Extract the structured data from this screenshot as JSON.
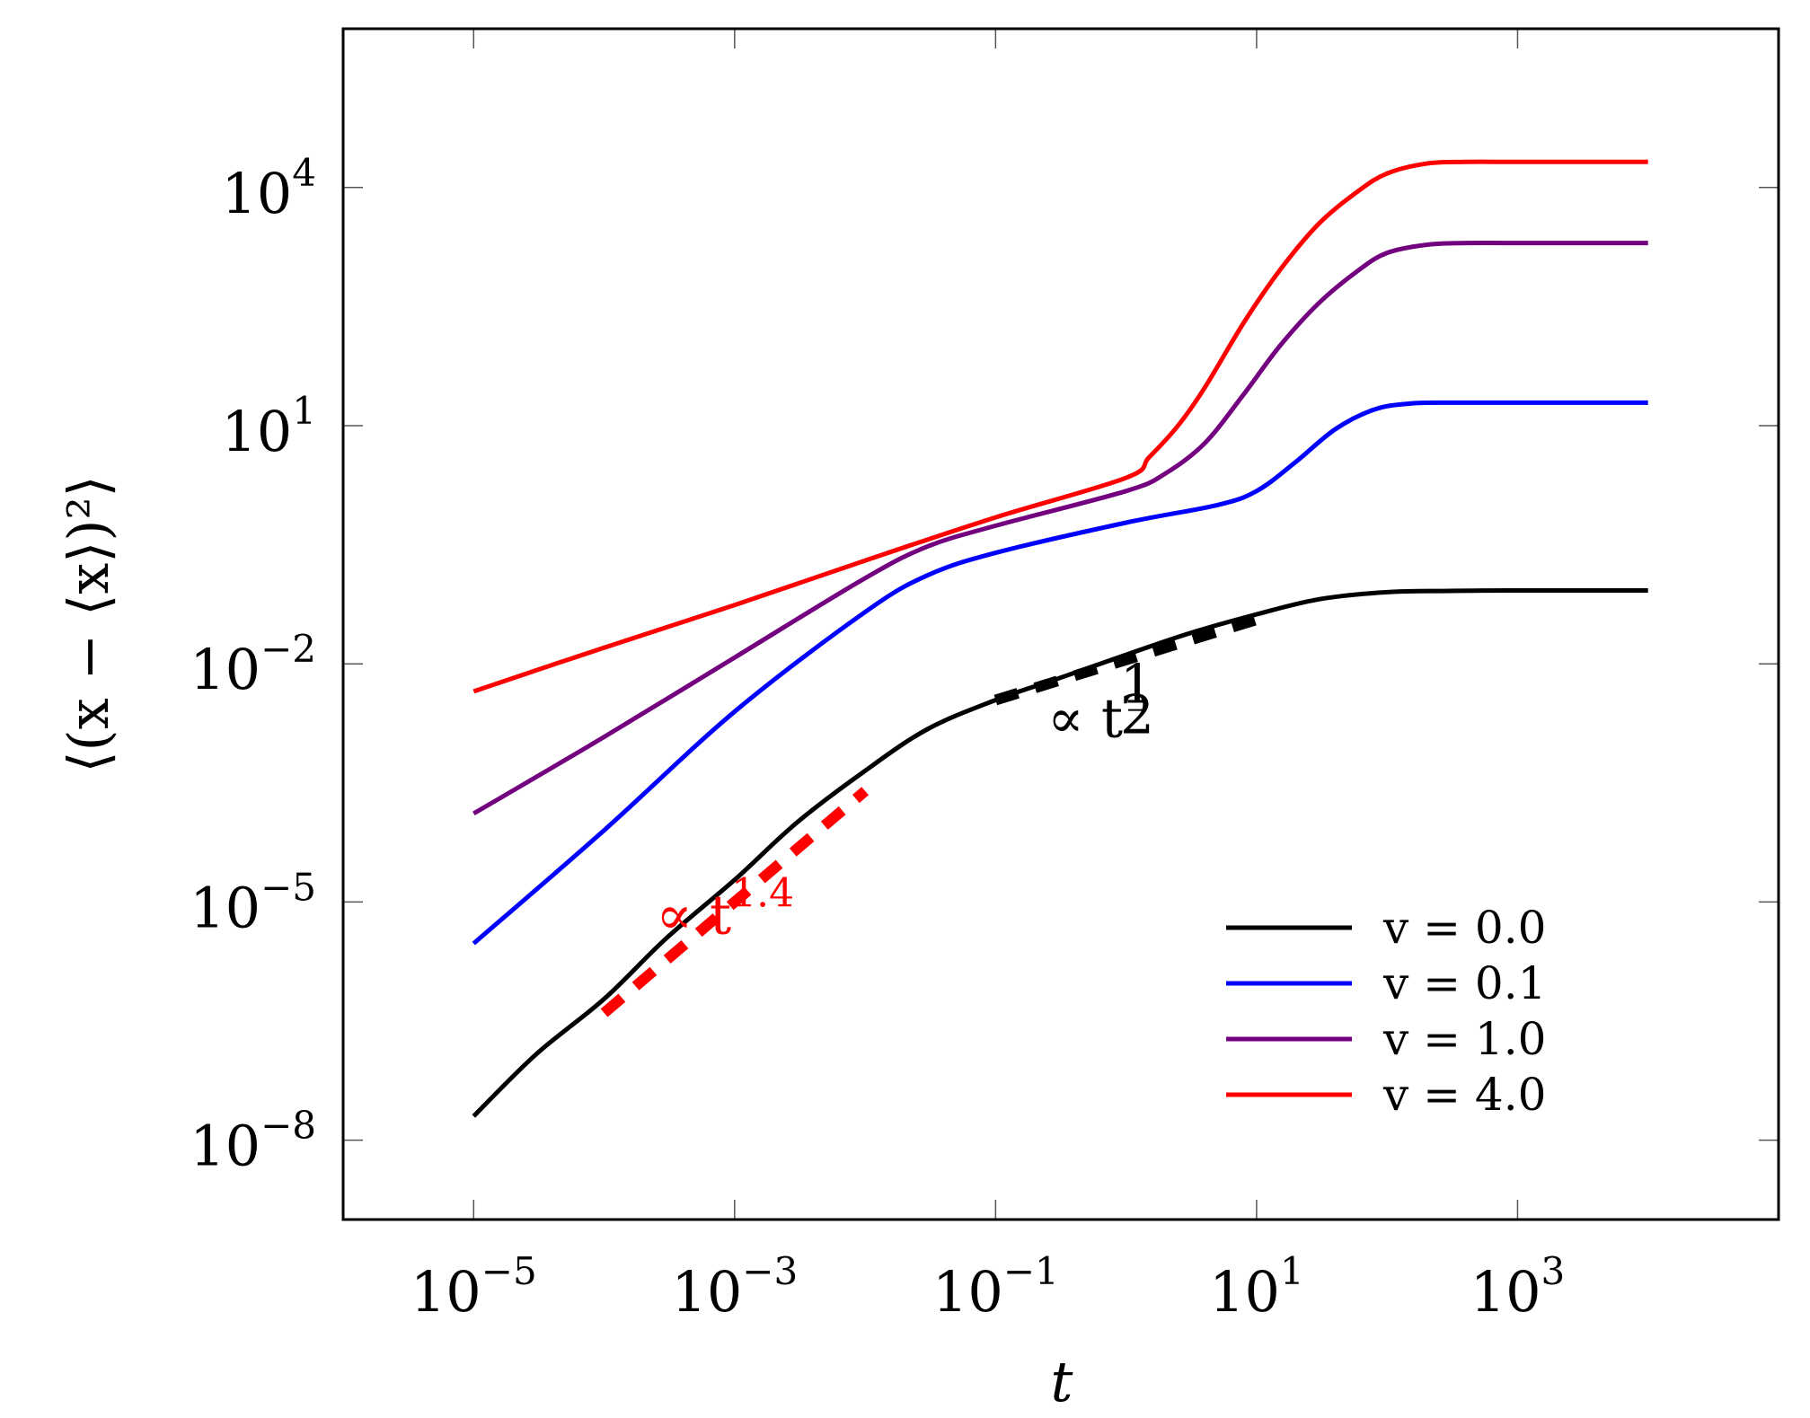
{
  "chart_data": {
    "type": "line",
    "title": "",
    "xlabel": "t",
    "ylabel": "⟨(x − ⟨x⟩)²⟩",
    "xscale": "log",
    "yscale": "log",
    "xlim": [
      1e-06,
      100000.0
    ],
    "ylim": [
      1e-09,
      1000000.0
    ],
    "xticks": [
      1e-05,
      0.001,
      0.1,
      10.0,
      1000.0
    ],
    "xtick_labels": [
      {
        "base": "10",
        "exp": "−5"
      },
      {
        "base": "10",
        "exp": "−3"
      },
      {
        "base": "10",
        "exp": "−1"
      },
      {
        "base": "10",
        "exp": "1"
      },
      {
        "base": "10",
        "exp": "3"
      }
    ],
    "yticks": [
      1e-08,
      1e-05,
      0.01,
      10.0,
      10000.0
    ],
    "ytick_labels": [
      {
        "base": "10",
        "exp": "−8"
      },
      {
        "base": "10",
        "exp": "−5"
      },
      {
        "base": "10",
        "exp": "−2"
      },
      {
        "base": "10",
        "exp": "1"
      },
      {
        "base": "10",
        "exp": "4"
      }
    ],
    "legend_position": "bottom-right",
    "series": [
      {
        "name": "v = 0.0",
        "color": "#000000",
        "x": [
          1e-05,
          3e-05,
          0.0001,
          0.0003,
          0.001,
          0.003,
          0.01,
          0.03,
          0.1,
          0.3,
          1,
          3,
          10,
          30,
          100,
          300,
          1000,
          10000.0
        ],
        "y": [
          2e-08,
          1.2e-07,
          6e-07,
          3.5e-06,
          1.9e-05,
          0.0001,
          0.00045,
          0.0015,
          0.0035,
          0.0065,
          0.013,
          0.024,
          0.042,
          0.065,
          0.08,
          0.083,
          0.084,
          0.084
        ]
      },
      {
        "name": "v = 0.1",
        "color": "#0000ff",
        "x": [
          1e-05,
          0.0001,
          0.001,
          0.01,
          0.03,
          0.1,
          1,
          5,
          10,
          20,
          40,
          80,
          150,
          300,
          1000,
          10000.0
        ],
        "y": [
          3e-06,
          8e-05,
          0.0025,
          0.045,
          0.13,
          0.25,
          0.6,
          1.0,
          1.5,
          3.5,
          9,
          16,
          19,
          19.5,
          19.5,
          19.5
        ]
      },
      {
        "name": "v = 1.0",
        "color": "#73007e",
        "x": [
          1e-05,
          0.0001,
          0.001,
          0.01,
          0.03,
          0.1,
          1,
          2,
          4,
          8,
          15,
          30,
          60,
          100,
          200,
          400,
          1000,
          10000.0
        ],
        "y": [
          0.00013,
          0.0012,
          0.012,
          0.12,
          0.3,
          0.55,
          1.5,
          2.5,
          6,
          25,
          100,
          350,
          900,
          1500,
          1900,
          2000,
          2000,
          2000
        ]
      },
      {
        "name": "v = 4.0",
        "color": "#ff0000",
        "x": [
          1e-05,
          0.0001,
          0.001,
          0.01,
          0.1,
          1,
          1.5,
          2.5,
          4,
          8,
          15,
          30,
          60,
          100,
          200,
          400,
          1000,
          10000.0
        ],
        "y": [
          0.0045,
          0.016,
          0.055,
          0.2,
          0.7,
          2.2,
          4,
          10,
          30,
          200,
          900,
          3500,
          9000,
          15000,
          20000,
          21000,
          21000,
          21000
        ]
      }
    ],
    "guides": [
      {
        "name": "t^1.4 guide",
        "color": "#ff0000",
        "x": [
          0.0001,
          0.01
        ],
        "y": [
          4e-07,
          0.00025
        ]
      },
      {
        "name": "t^1/2 guide",
        "color": "#000000",
        "x": [
          0.1,
          10
        ],
        "y": [
          0.0035,
          0.036
        ]
      }
    ],
    "annotations": [
      {
        "text": "∝ t",
        "sup": "1.4",
        "color": "#ff0000",
        "x": 0.00025,
        "y": 4e-06
      },
      {
        "text": "∝ t",
        "sup_num": "1",
        "sup_den": "2",
        "color": "#000000",
        "x": 0.25,
        "y": 0.0012
      }
    ]
  }
}
